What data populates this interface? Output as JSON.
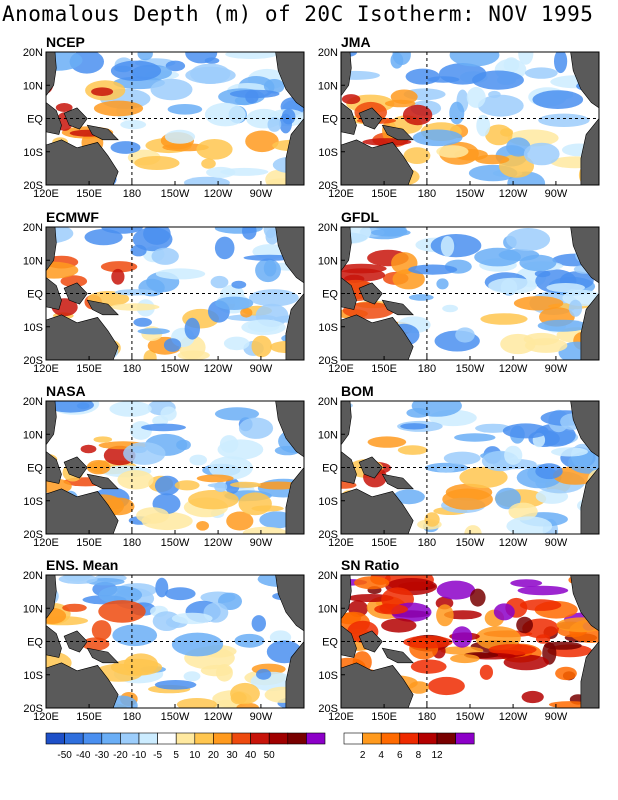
{
  "title": "Anomalous Depth (m) of 20C Isotherm: NOV 1995",
  "axes": {
    "xticks": [
      "120E",
      "150E",
      "180",
      "150W",
      "120W",
      "90W"
    ],
    "yticks": [
      "20N",
      "10N",
      "EQ",
      "10S",
      "20S"
    ]
  },
  "panels": [
    {
      "label": "NCEP"
    },
    {
      "label": "JMA"
    },
    {
      "label": "ECMWF"
    },
    {
      "label": "GFDL"
    },
    {
      "label": "NASA"
    },
    {
      "label": "BOM"
    },
    {
      "label": "ENS. Mean"
    },
    {
      "label": "SN Ratio"
    }
  ],
  "colorbar_anomaly": {
    "labels": [
      "-50",
      "-40",
      "-30",
      "-20",
      "-10",
      "-5",
      "5",
      "10",
      "20",
      "30",
      "40",
      "50"
    ],
    "colors": [
      "#1e50c8",
      "#2f6fdd",
      "#4a8ff0",
      "#6aaef6",
      "#9ccdfb",
      "#ccecff",
      "#ffffff",
      "#ffe9a0",
      "#ffc64f",
      "#ff9a1e",
      "#ee4a0e",
      "#c8140a",
      "#a00000",
      "#780000",
      "#8c00c8"
    ]
  },
  "colorbar_sn": {
    "labels": [
      "2",
      "4",
      "6",
      "8",
      "12"
    ],
    "colors": [
      "#ffffff",
      "#ff9a1e",
      "#ff6a00",
      "#ee2a00",
      "#b40000",
      "#780000",
      "#8c00c8"
    ]
  },
  "chart_data": [
    {
      "type": "heatmap",
      "title": "NCEP",
      "x": [
        "120E",
        "150E",
        "180",
        "150W",
        "120W",
        "90W"
      ],
      "y": [
        "20N",
        "10N",
        "EQ",
        "10S",
        "20S"
      ],
      "colorbar": [
        "-50",
        "-40",
        "-30",
        "-20",
        "-10",
        "-5",
        "5",
        "10",
        "20",
        "30",
        "40",
        "50"
      ]
    },
    {
      "type": "heatmap",
      "title": "JMA",
      "x": [
        "120E",
        "150E",
        "180",
        "150W",
        "120W",
        "90W"
      ],
      "y": [
        "20N",
        "10N",
        "EQ",
        "10S",
        "20S"
      ],
      "colorbar": [
        "-50",
        "-40",
        "-30",
        "-20",
        "-10",
        "-5",
        "5",
        "10",
        "20",
        "30",
        "40",
        "50"
      ]
    },
    {
      "type": "heatmap",
      "title": "ECMWF",
      "x": [
        "120E",
        "150E",
        "180",
        "150W",
        "120W",
        "90W"
      ],
      "y": [
        "20N",
        "10N",
        "EQ",
        "10S",
        "20S"
      ],
      "colorbar": [
        "-50",
        "-40",
        "-30",
        "-20",
        "-10",
        "-5",
        "5",
        "10",
        "20",
        "30",
        "40",
        "50"
      ]
    },
    {
      "type": "heatmap",
      "title": "GFDL",
      "x": [
        "120E",
        "150E",
        "180",
        "150W",
        "120W",
        "90W"
      ],
      "y": [
        "20N",
        "10N",
        "EQ",
        "10S",
        "20S"
      ],
      "colorbar": [
        "-50",
        "-40",
        "-30",
        "-20",
        "-10",
        "-5",
        "5",
        "10",
        "20",
        "30",
        "40",
        "50"
      ]
    },
    {
      "type": "heatmap",
      "title": "NASA",
      "x": [
        "120E",
        "150E",
        "180",
        "150W",
        "120W",
        "90W"
      ],
      "y": [
        "20N",
        "10N",
        "EQ",
        "10S",
        "20S"
      ],
      "colorbar": [
        "-50",
        "-40",
        "-30",
        "-20",
        "-10",
        "-5",
        "5",
        "10",
        "20",
        "30",
        "40",
        "50"
      ]
    },
    {
      "type": "heatmap",
      "title": "BOM",
      "x": [
        "120E",
        "150E",
        "180",
        "150W",
        "120W",
        "90W"
      ],
      "y": [
        "20N",
        "10N",
        "EQ",
        "10S",
        "20S"
      ],
      "colorbar": [
        "-50",
        "-40",
        "-30",
        "-20",
        "-10",
        "-5",
        "5",
        "10",
        "20",
        "30",
        "40",
        "50"
      ]
    },
    {
      "type": "heatmap",
      "title": "ENS. Mean",
      "x": [
        "120E",
        "150E",
        "180",
        "150W",
        "120W",
        "90W"
      ],
      "y": [
        "20N",
        "10N",
        "EQ",
        "10S",
        "20S"
      ],
      "colorbar": [
        "-50",
        "-40",
        "-30",
        "-20",
        "-10",
        "-5",
        "5",
        "10",
        "20",
        "30",
        "40",
        "50"
      ]
    },
    {
      "type": "heatmap",
      "title": "SN Ratio",
      "x": [
        "120E",
        "150E",
        "180",
        "150W",
        "120W",
        "90W"
      ],
      "y": [
        "20N",
        "10N",
        "EQ",
        "10S",
        "20S"
      ],
      "colorbar": [
        "2",
        "4",
        "6",
        "8",
        "12"
      ]
    }
  ]
}
